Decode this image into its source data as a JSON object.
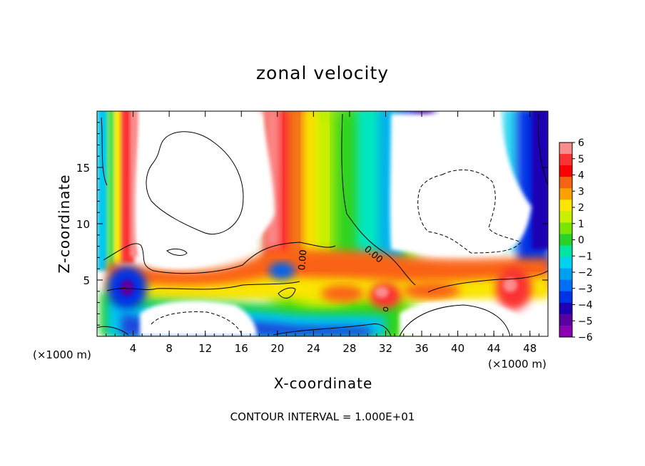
{
  "chart_data": {
    "type": "heatmap",
    "title": "zonal velocity",
    "xlabel": "X-coordinate",
    "ylabel": "Z-coordinate",
    "x_unit_label": "(×1000 m)",
    "xlim": [
      0,
      50
    ],
    "ylim": [
      0,
      20
    ],
    "x_ticks": [
      "4",
      "8",
      "12",
      "16",
      "20",
      "24",
      "28",
      "32",
      "36",
      "40",
      "44",
      "48"
    ],
    "y_ticks": [
      "5",
      "10",
      "15"
    ],
    "colorbar": {
      "range": [
        -6,
        6
      ],
      "labels": [
        "6",
        "5",
        "4",
        "3",
        "2",
        "1",
        "0",
        "−1",
        "−2",
        "−3",
        "−4",
        "−5",
        "−6"
      ],
      "colors": [
        "#fa8c8c",
        "#fa3232",
        "#fa0000",
        "#f56414",
        "#faa000",
        "#fae600",
        "#c8f000",
        "#78e600",
        "#28d228",
        "#00e6a0",
        "#00d2f0",
        "#00a0f0",
        "#006ef5",
        "#0032e6",
        "#1e00b4",
        "#5a00a0",
        "#8c00b4"
      ]
    },
    "contour_labels": [
      "0.00",
      "0.00"
    ],
    "footer": "CONTOUR INTERVAL = 1.000E+01"
  }
}
